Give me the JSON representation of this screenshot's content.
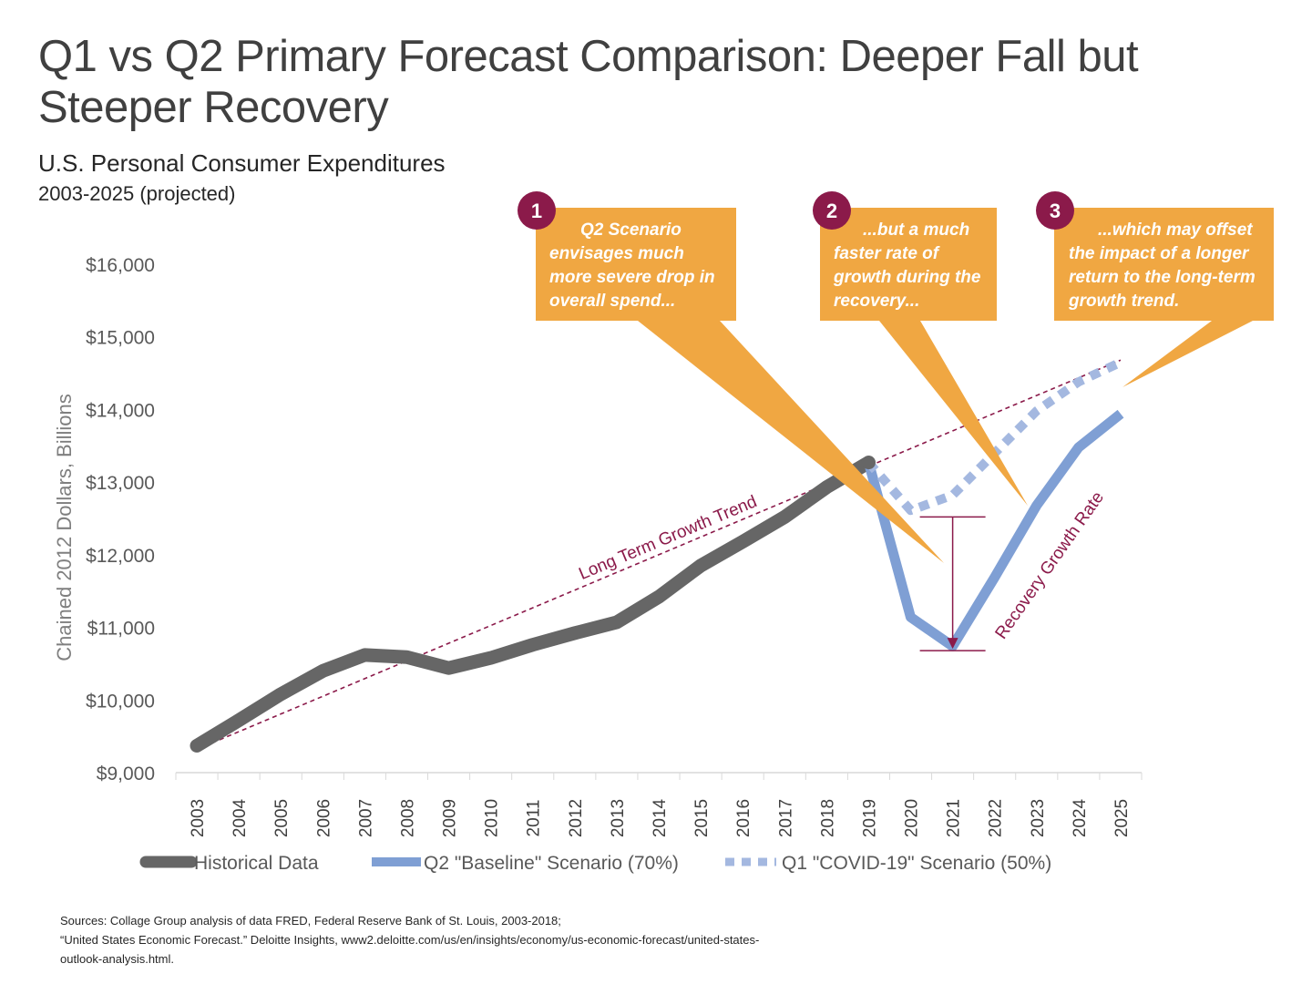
{
  "header": {
    "title": "Q1 vs Q2 Primary Forecast Comparison: Deeper Fall but Steeper Recovery",
    "subtitle": "U.S. Personal Consumer Expenditures",
    "subtitle2": "2003-2025 (projected)"
  },
  "chart_data": {
    "type": "line",
    "ylabel": "Chained 2012 Dollars, Billions",
    "ylim": [
      9000,
      16000
    ],
    "yticks": [
      "$9,000",
      "$10,000",
      "$11,000",
      "$12,000",
      "$13,000",
      "$14,000",
      "$15,000",
      "$16,000"
    ],
    "x": [
      "2003",
      "2004",
      "2005",
      "2006",
      "2007",
      "2008",
      "2009",
      "2010",
      "2011",
      "2012",
      "2013",
      "2014",
      "2015",
      "2016",
      "2017",
      "2018",
      "2019",
      "2020",
      "2021",
      "2022",
      "2023",
      "2024",
      "2025"
    ],
    "series": [
      {
        "name": "Historical Data",
        "color": "#666666",
        "style": "solid-thick",
        "points": [
          [
            "2003",
            9370
          ],
          [
            "2004",
            9720
          ],
          [
            "2005",
            10080
          ],
          [
            "2006",
            10400
          ],
          [
            "2007",
            10620
          ],
          [
            "2008",
            10590
          ],
          [
            "2009",
            10440
          ],
          [
            "2010",
            10580
          ],
          [
            "2011",
            10760
          ],
          [
            "2012",
            10920
          ],
          [
            "2013",
            11070
          ],
          [
            "2014",
            11420
          ],
          [
            "2015",
            11850
          ],
          [
            "2016",
            12180
          ],
          [
            "2017",
            12520
          ],
          [
            "2018",
            12930
          ],
          [
            "2019",
            13270
          ]
        ]
      },
      {
        "name": "Q2 \"Baseline\" Scenario (70%)",
        "color": "#7f9fd4",
        "style": "solid",
        "points": [
          [
            "2019",
            13270
          ],
          [
            "2020",
            11140
          ],
          [
            "2021",
            10740
          ],
          [
            "2022",
            11690
          ],
          [
            "2023",
            12680
          ],
          [
            "2024",
            13480
          ],
          [
            "2025",
            13940
          ]
        ]
      },
      {
        "name": "Q1 \"COVID-19\" Scenario (50%)",
        "color": "#a4b8e0",
        "style": "dotted",
        "points": [
          [
            "2019",
            13270
          ],
          [
            "2020",
            12610
          ],
          [
            "2021",
            12820
          ],
          [
            "2022",
            13400
          ],
          [
            "2023",
            13980
          ],
          [
            "2024",
            14380
          ],
          [
            "2025",
            14650
          ]
        ]
      }
    ],
    "trend": {
      "label": "Long Term Growth Trend",
      "color": "#8b1a4a",
      "start": [
        "2003",
        9320
      ],
      "end": [
        "2025",
        14680
      ]
    },
    "recovery_marker": {
      "label": "Recovery Growth Rate",
      "x": "2021",
      "from": 12520,
      "to": 10680
    },
    "annotations": [
      {
        "number": "1",
        "lines": [
          "Q2 Scenario",
          "envisages much",
          "more severe drop in",
          "overall spend..."
        ]
      },
      {
        "number": "2",
        "lines": [
          "...but a much",
          "faster rate of",
          "growth during the",
          "recovery..."
        ]
      },
      {
        "number": "3",
        "lines": [
          "...which may offset",
          "the impact of a longer",
          "return to the long-term",
          "growth trend."
        ]
      }
    ],
    "annotation_color": "#f0a742",
    "badge_color": "#8b1a4a"
  },
  "sources": {
    "line1": "Sources: Collage Group analysis of data FRED, Federal Reserve Bank of St. Louis, 2003-2018;",
    "line2": "“United States Economic Forecast.” Deloitte Insights, www2.deloitte.com/us/en/insights/economy/us-economic-forecast/united-states-",
    "line3": "outlook-analysis.html."
  }
}
